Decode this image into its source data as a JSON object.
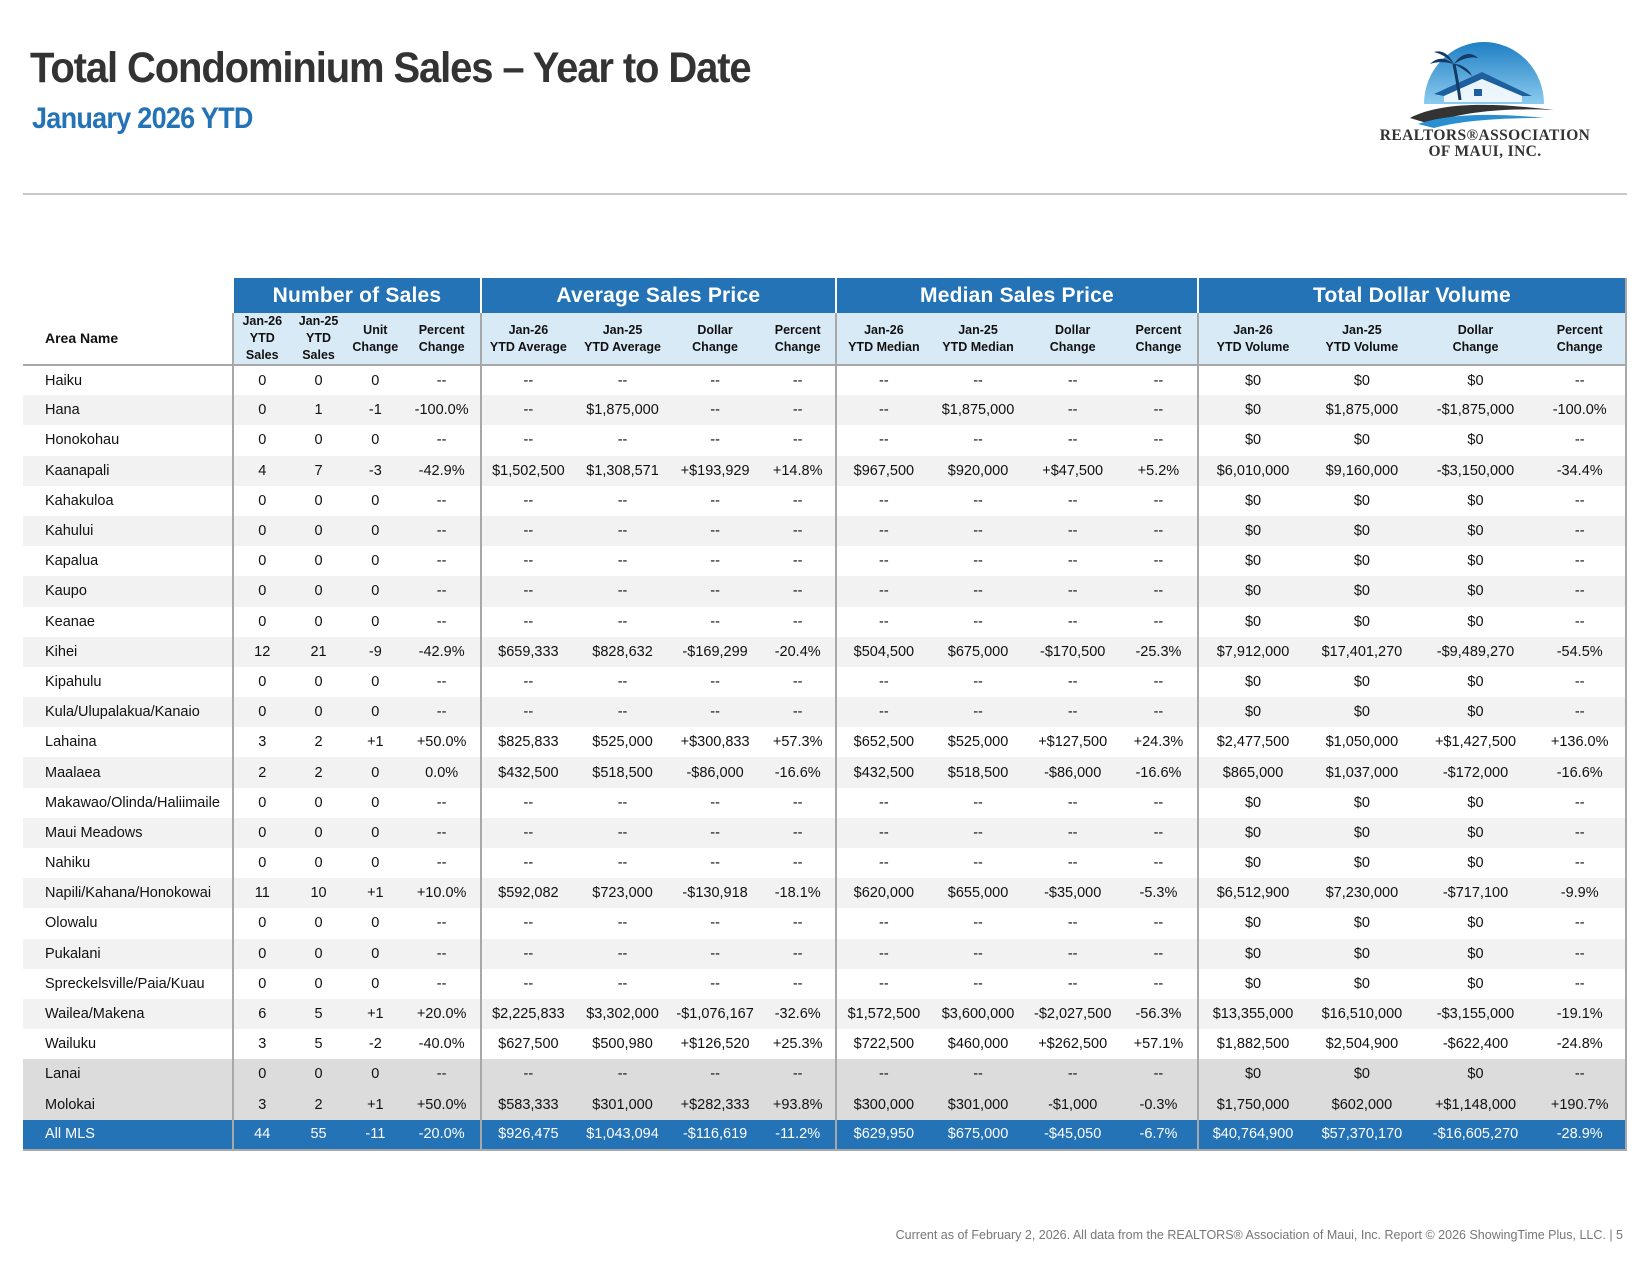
{
  "header": {
    "title": "Total Condominium Sales – Year to Date",
    "subtitle": "January 2026 YTD"
  },
  "logo": {
    "line1": "REALTORS®ASSOCIATION",
    "line2": "OF MAUI, INC.",
    "icon": "palm-tree-house-logo-icon",
    "colors": {
      "sky": "#2a8fd0",
      "roof": "#1e5f9e",
      "swoosh": "#333333"
    }
  },
  "colors": {
    "accent": "#2473b7",
    "subheader": "#d9eaf7",
    "alt_row": "#f2f2f2",
    "island_row": "#dcdcdc"
  },
  "table": {
    "groups": [
      "Number of Sales",
      "Average Sales Price",
      "Median Sales Price",
      "Total Dollar Volume"
    ],
    "area_header": "Area Name",
    "subheaders": [
      [
        "Jan-26",
        "YTD",
        "Sales"
      ],
      [
        "Jan-25",
        "YTD",
        "Sales"
      ],
      [
        "Unit",
        "Change"
      ],
      [
        "Percent",
        "Change"
      ],
      [
        "Jan-26",
        "YTD Average"
      ],
      [
        "Jan-25",
        "YTD Average"
      ],
      [
        "Dollar",
        "Change"
      ],
      [
        "Percent",
        "Change"
      ],
      [
        "Jan-26",
        "YTD Median"
      ],
      [
        "Jan-25",
        "YTD Median"
      ],
      [
        "Dollar",
        "Change"
      ],
      [
        "Percent",
        "Change"
      ],
      [
        "Jan-26",
        "YTD Volume"
      ],
      [
        "Jan-25",
        "YTD Volume"
      ],
      [
        "Dollar",
        "Change"
      ],
      [
        "Percent",
        "Change"
      ]
    ],
    "rows": [
      [
        "Haiku",
        "0",
        "0",
        "0",
        "--",
        "--",
        "--",
        "--",
        "--",
        "--",
        "--",
        "--",
        "--",
        "$0",
        "$0",
        "$0",
        "--"
      ],
      [
        "Hana",
        "0",
        "1",
        "-1",
        "-100.0%",
        "--",
        "$1,875,000",
        "--",
        "--",
        "--",
        "$1,875,000",
        "--",
        "--",
        "$0",
        "$1,875,000",
        "-$1,875,000",
        "-100.0%"
      ],
      [
        "Honokohau",
        "0",
        "0",
        "0",
        "--",
        "--",
        "--",
        "--",
        "--",
        "--",
        "--",
        "--",
        "--",
        "$0",
        "$0",
        "$0",
        "--"
      ],
      [
        "Kaanapali",
        "4",
        "7",
        "-3",
        "-42.9%",
        "$1,502,500",
        "$1,308,571",
        "+$193,929",
        "+14.8%",
        "$967,500",
        "$920,000",
        "+$47,500",
        "+5.2%",
        "$6,010,000",
        "$9,160,000",
        "-$3,150,000",
        "-34.4%"
      ],
      [
        "Kahakuloa",
        "0",
        "0",
        "0",
        "--",
        "--",
        "--",
        "--",
        "--",
        "--",
        "--",
        "--",
        "--",
        "$0",
        "$0",
        "$0",
        "--"
      ],
      [
        "Kahului",
        "0",
        "0",
        "0",
        "--",
        "--",
        "--",
        "--",
        "--",
        "--",
        "--",
        "--",
        "--",
        "$0",
        "$0",
        "$0",
        "--"
      ],
      [
        "Kapalua",
        "0",
        "0",
        "0",
        "--",
        "--",
        "--",
        "--",
        "--",
        "--",
        "--",
        "--",
        "--",
        "$0",
        "$0",
        "$0",
        "--"
      ],
      [
        "Kaupo",
        "0",
        "0",
        "0",
        "--",
        "--",
        "--",
        "--",
        "--",
        "--",
        "--",
        "--",
        "--",
        "$0",
        "$0",
        "$0",
        "--"
      ],
      [
        "Keanae",
        "0",
        "0",
        "0",
        "--",
        "--",
        "--",
        "--",
        "--",
        "--",
        "--",
        "--",
        "--",
        "$0",
        "$0",
        "$0",
        "--"
      ],
      [
        "Kihei",
        "12",
        "21",
        "-9",
        "-42.9%",
        "$659,333",
        "$828,632",
        "-$169,299",
        "-20.4%",
        "$504,500",
        "$675,000",
        "-$170,500",
        "-25.3%",
        "$7,912,000",
        "$17,401,270",
        "-$9,489,270",
        "-54.5%"
      ],
      [
        "Kipahulu",
        "0",
        "0",
        "0",
        "--",
        "--",
        "--",
        "--",
        "--",
        "--",
        "--",
        "--",
        "--",
        "$0",
        "$0",
        "$0",
        "--"
      ],
      [
        "Kula/Ulupalakua/Kanaio",
        "0",
        "0",
        "0",
        "--",
        "--",
        "--",
        "--",
        "--",
        "--",
        "--",
        "--",
        "--",
        "$0",
        "$0",
        "$0",
        "--"
      ],
      [
        "Lahaina",
        "3",
        "2",
        "+1",
        "+50.0%",
        "$825,833",
        "$525,000",
        "+$300,833",
        "+57.3%",
        "$652,500",
        "$525,000",
        "+$127,500",
        "+24.3%",
        "$2,477,500",
        "$1,050,000",
        "+$1,427,500",
        "+136.0%"
      ],
      [
        "Maalaea",
        "2",
        "2",
        "0",
        "0.0%",
        "$432,500",
        "$518,500",
        "-$86,000",
        "-16.6%",
        "$432,500",
        "$518,500",
        "-$86,000",
        "-16.6%",
        "$865,000",
        "$1,037,000",
        "-$172,000",
        "-16.6%"
      ],
      [
        "Makawao/Olinda/Haliimaile",
        "0",
        "0",
        "0",
        "--",
        "--",
        "--",
        "--",
        "--",
        "--",
        "--",
        "--",
        "--",
        "$0",
        "$0",
        "$0",
        "--"
      ],
      [
        "Maui Meadows",
        "0",
        "0",
        "0",
        "--",
        "--",
        "--",
        "--",
        "--",
        "--",
        "--",
        "--",
        "--",
        "$0",
        "$0",
        "$0",
        "--"
      ],
      [
        "Nahiku",
        "0",
        "0",
        "0",
        "--",
        "--",
        "--",
        "--",
        "--",
        "--",
        "--",
        "--",
        "--",
        "$0",
        "$0",
        "$0",
        "--"
      ],
      [
        "Napili/Kahana/Honokowai",
        "11",
        "10",
        "+1",
        "+10.0%",
        "$592,082",
        "$723,000",
        "-$130,918",
        "-18.1%",
        "$620,000",
        "$655,000",
        "-$35,000",
        "-5.3%",
        "$6,512,900",
        "$7,230,000",
        "-$717,100",
        "-9.9%"
      ],
      [
        "Olowalu",
        "0",
        "0",
        "0",
        "--",
        "--",
        "--",
        "--",
        "--",
        "--",
        "--",
        "--",
        "--",
        "$0",
        "$0",
        "$0",
        "--"
      ],
      [
        "Pukalani",
        "0",
        "0",
        "0",
        "--",
        "--",
        "--",
        "--",
        "--",
        "--",
        "--",
        "--",
        "--",
        "$0",
        "$0",
        "$0",
        "--"
      ],
      [
        "Spreckelsville/Paia/Kuau",
        "0",
        "0",
        "0",
        "--",
        "--",
        "--",
        "--",
        "--",
        "--",
        "--",
        "--",
        "--",
        "$0",
        "$0",
        "$0",
        "--"
      ],
      [
        "Wailea/Makena",
        "6",
        "5",
        "+1",
        "+20.0%",
        "$2,225,833",
        "$3,302,000",
        "-$1,076,167",
        "-32.6%",
        "$1,572,500",
        "$3,600,000",
        "-$2,027,500",
        "-56.3%",
        "$13,355,000",
        "$16,510,000",
        "-$3,155,000",
        "-19.1%"
      ],
      [
        "Wailuku",
        "3",
        "5",
        "-2",
        "-40.0%",
        "$627,500",
        "$500,980",
        "+$126,520",
        "+25.3%",
        "$722,500",
        "$460,000",
        "+$262,500",
        "+57.1%",
        "$1,882,500",
        "$2,504,900",
        "-$622,400",
        "-24.8%"
      ]
    ],
    "island_rows": [
      [
        "Lanai",
        "0",
        "0",
        "0",
        "--",
        "--",
        "--",
        "--",
        "--",
        "--",
        "--",
        "--",
        "--",
        "$0",
        "$0",
        "$0",
        "--"
      ],
      [
        "Molokai",
        "3",
        "2",
        "+1",
        "+50.0%",
        "$583,333",
        "$301,000",
        "+$282,333",
        "+93.8%",
        "$300,000",
        "$301,000",
        "-$1,000",
        "-0.3%",
        "$1,750,000",
        "$602,000",
        "+$1,148,000",
        "+190.7%"
      ]
    ],
    "total_row": [
      "All MLS",
      "44",
      "55",
      "-11",
      "-20.0%",
      "$926,475",
      "$1,043,094",
      "-$116,619",
      "-11.2%",
      "$629,950",
      "$675,000",
      "-$45,050",
      "-6.7%",
      "$40,764,900",
      "$57,370,170",
      "-$16,605,270",
      "-28.9%"
    ]
  },
  "footer": {
    "text": "Current as of February 2, 2026. All data from the REALTORS® Association of Maui, Inc. Report © 2026 ShowingTime Plus, LLC.  |  5"
  }
}
